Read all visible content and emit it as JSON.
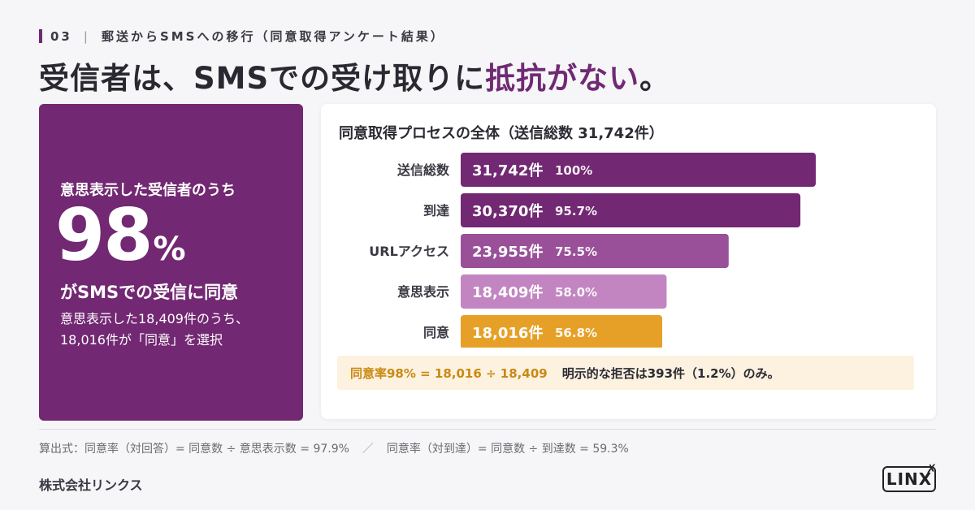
{
  "header": {
    "section_number": "03",
    "section_title": "郵送からSMSへの移行（同意取得アンケート結果）",
    "headline_prefix": "受信者は、SMSでの受け取りに",
    "headline_accent": "抵抗がない",
    "headline_suffix": "。"
  },
  "highlight": {
    "lead": "意思表示した受信者のうち",
    "big_number": "98",
    "percent_sign": "%",
    "caption": "がSMSでの受信に同意",
    "note_line1": "意思表示した18,409件のうち、",
    "note_line2": "18,016件が「同意」を選択"
  },
  "colors": {
    "brand_purple": "#722872",
    "accent_gold": "#e7a027",
    "background": "#f6f5f7"
  },
  "chart_data": {
    "type": "bar",
    "orientation": "horizontal",
    "title": "同意取得プロセスの全体（送信総数 31,742件）",
    "categories": [
      "送信総数",
      "到達",
      "URLアクセス",
      "意思表示",
      "同意"
    ],
    "values": [
      31742,
      30370,
      23955,
      18409,
      18016
    ],
    "value_labels": [
      "31,742件",
      "30,370件",
      "23,955件",
      "18,409件",
      "18,016件"
    ],
    "percent_labels": [
      "100%",
      "95.7%",
      "75.5%",
      "58.0%",
      "56.8%"
    ],
    "bar_colors": [
      "#722872",
      "#722872",
      "#995099",
      "#c285c2",
      "#e7a027"
    ],
    "xlim": [
      0,
      31742
    ],
    "grid": false
  },
  "summary": {
    "highlight": "同意率98% = 18,016 ÷ 18,409",
    "rest": "明示的な拒否は393件（1.2%）のみ。"
  },
  "footer": {
    "formula_left": "算出式：同意率（対回答）= 同意数 ÷ 意思表示数 = 97.9%",
    "separator": "／",
    "formula_right": "同意率（対到達）= 同意数 ÷ 到達数 = 59.3%",
    "company": "株式会社リンクス",
    "logo_text": "LINX",
    "logo_mark": "✗"
  }
}
